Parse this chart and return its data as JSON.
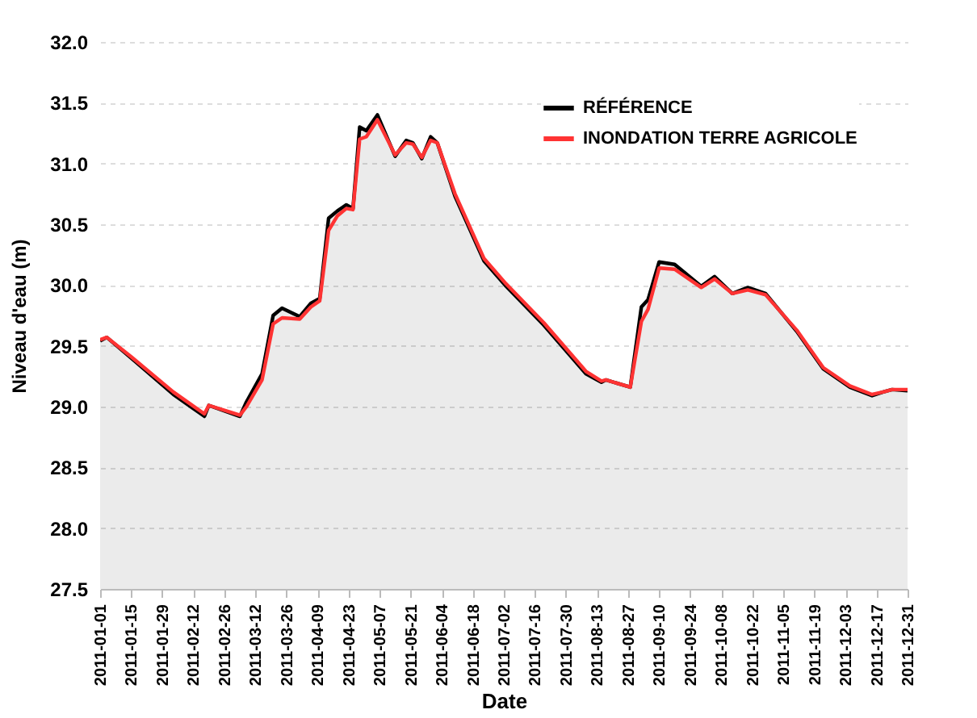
{
  "chart_data": {
    "type": "line",
    "xlabel": "Date",
    "ylabel": "Niveau d'eau (m)",
    "x": [
      "2011-01-01",
      "2011-01-04",
      "2011-01-15",
      "2011-02-03",
      "2011-02-17",
      "2011-02-19",
      "2011-03-05",
      "2011-03-08",
      "2011-03-15",
      "2011-03-20",
      "2011-03-24",
      "2011-04-01",
      "2011-04-06",
      "2011-04-10",
      "2011-04-14",
      "2011-04-18",
      "2011-04-22",
      "2011-04-25",
      "2011-04-28",
      "2011-05-01",
      "2011-05-06",
      "2011-05-14",
      "2011-05-19",
      "2011-05-22",
      "2011-05-26",
      "2011-05-30",
      "2011-06-02",
      "2011-06-10",
      "2011-06-23",
      "2011-07-03",
      "2011-07-20",
      "2011-08-08",
      "2011-08-15",
      "2011-08-17",
      "2011-08-28",
      "2011-09-02",
      "2011-09-05",
      "2011-09-10",
      "2011-09-17",
      "2011-09-29",
      "2011-10-05",
      "2011-10-13",
      "2011-10-20",
      "2011-10-28",
      "2011-11-11",
      "2011-11-23",
      "2011-12-05",
      "2011-12-15",
      "2011-12-20",
      "2011-12-24",
      "2011-12-31"
    ],
    "series": [
      {
        "name": "RÉFÉRENCE",
        "color": "#000000",
        "type": "area",
        "values": [
          29.54,
          29.57,
          29.4,
          29.1,
          28.92,
          29.01,
          28.92,
          29.04,
          29.27,
          29.75,
          29.81,
          29.74,
          29.85,
          29.89,
          30.55,
          30.61,
          30.66,
          30.63,
          31.3,
          31.27,
          31.4,
          31.06,
          31.19,
          31.17,
          31.04,
          31.22,
          31.17,
          30.73,
          30.2,
          29.99,
          29.67,
          29.27,
          29.2,
          29.22,
          29.16,
          29.82,
          29.88,
          30.19,
          30.17,
          29.99,
          30.07,
          29.93,
          29.98,
          29.93,
          29.62,
          29.31,
          29.16,
          29.09,
          29.12,
          29.14,
          29.13
        ]
      },
      {
        "name": "INONDATION TERRE AGRICOLE",
        "color": "#ff3333",
        "values": [
          29.55,
          29.57,
          29.41,
          29.12,
          28.94,
          29.01,
          28.93,
          29.0,
          29.22,
          29.68,
          29.73,
          29.72,
          29.82,
          29.87,
          30.45,
          30.57,
          30.63,
          30.62,
          31.2,
          31.22,
          31.36,
          31.07,
          31.17,
          31.16,
          31.05,
          31.19,
          31.17,
          30.75,
          30.22,
          30.01,
          29.69,
          29.29,
          29.21,
          29.22,
          29.16,
          29.7,
          29.8,
          30.14,
          30.13,
          29.98,
          30.05,
          29.93,
          29.96,
          29.92,
          29.63,
          29.32,
          29.17,
          29.1,
          29.12,
          29.14,
          29.14
        ]
      }
    ],
    "ylim": [
      27.5,
      32.0
    ],
    "yticks": [
      {
        "value": 27.5,
        "label": "27.5"
      },
      {
        "value": 28,
        "label": "28.0"
      },
      {
        "value": 28.5,
        "label": "28.5"
      },
      {
        "value": 29,
        "label": "29.0"
      },
      {
        "value": 29.5,
        "label": "29.5"
      },
      {
        "value": 30,
        "label": "30.0"
      },
      {
        "value": 30.5,
        "label": "30.5"
      },
      {
        "value": 31,
        "label": "31.0"
      },
      {
        "value": 31.5,
        "label": "31.5"
      },
      {
        "value": 32,
        "label": "32.0"
      }
    ],
    "xlim": [
      "2011-01-01",
      "2011-12-31"
    ],
    "xticks": [
      "2011-01-01",
      "2011-01-15",
      "2011-01-29",
      "2011-02-12",
      "2011-02-26",
      "2011-03-12",
      "2011-03-26",
      "2011-04-09",
      "2011-04-23",
      "2011-05-07",
      "2011-05-21",
      "2011-06-04",
      "2011-06-18",
      "2011-07-02",
      "2011-07-16",
      "2011-07-30",
      "2011-08-13",
      "2011-08-27",
      "2011-09-10",
      "2011-09-24",
      "2011-10-08",
      "2011-10-22",
      "2011-11-05",
      "2011-11-19",
      "2011-12-03",
      "2011-12-17",
      "2011-12-31"
    ],
    "grid": "y",
    "legend": "top right",
    "line_style": "solid",
    "marker": "none"
  }
}
